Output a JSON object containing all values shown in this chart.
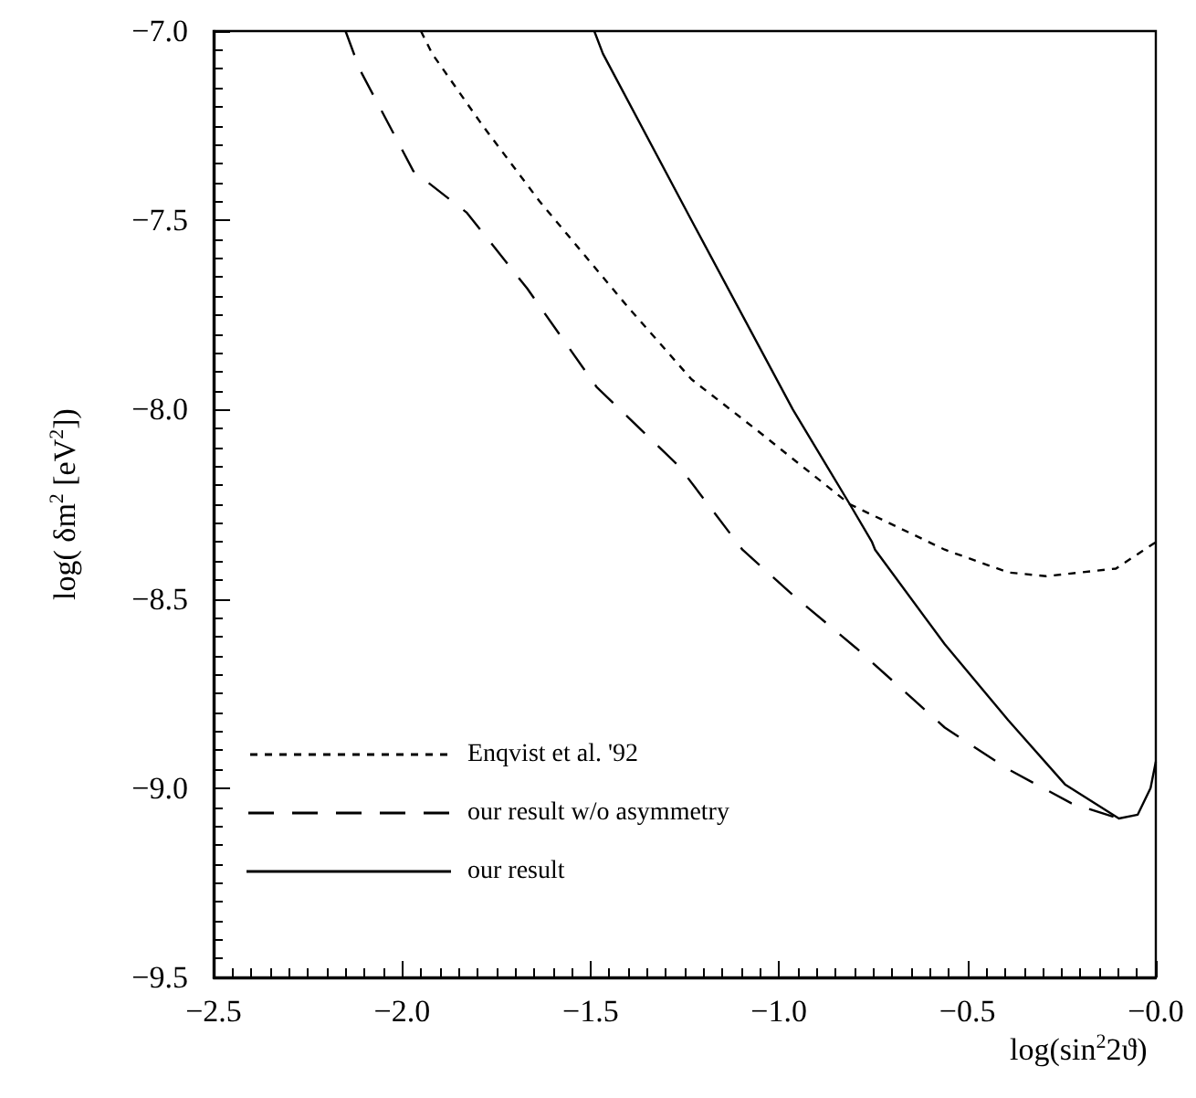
{
  "chart_data": {
    "type": "line",
    "xlabel": "log(sin$^{2}$2ϑ)",
    "ylabel": "log( δm$^{2}$ [eV$^{2}$])",
    "xlim": [
      -2.5,
      0.0
    ],
    "ylim": [
      -9.5,
      -7.0
    ],
    "xticks": [
      {
        "value": -2.5,
        "label": "−2.5"
      },
      {
        "value": -2.0,
        "label": "−2.0"
      },
      {
        "value": -1.5,
        "label": "−1.5"
      },
      {
        "value": -1.0,
        "label": "−1.0"
      },
      {
        "value": -0.5,
        "label": "−0.5"
      },
      {
        "value": 0.0,
        "label": "−0.0"
      }
    ],
    "yticks": [
      {
        "value": -9.5,
        "label": "−9.5"
      },
      {
        "value": -9.0,
        "label": "−9.0"
      },
      {
        "value": -8.5,
        "label": "−8.5"
      },
      {
        "value": -8.0,
        "label": "−8.0"
      },
      {
        "value": -7.5,
        "label": "−7.5"
      },
      {
        "value": -7.0,
        "label": "−7.0"
      }
    ],
    "grid": false,
    "legend": "bottom left",
    "marker": "none",
    "series": [
      {
        "name": "Enqvist et al. '92",
        "color": "#000000",
        "line_style": "dotted",
        "x": [
          -1.95,
          -1.92,
          -1.786,
          -1.635,
          -1.4,
          -1.232,
          -1.064,
          -0.812,
          -0.56,
          -0.392,
          -0.291,
          -0.106,
          0.0
        ],
        "values": [
          -7.0,
          -7.06,
          -7.25,
          -7.45,
          -7.73,
          -7.92,
          -8.05,
          -8.25,
          -8.37,
          -8.43,
          -8.44,
          -8.42,
          -8.35
        ]
      },
      {
        "name": "our result w/o asymmetry",
        "color": "#000000",
        "line_style": "dashed",
        "x": [
          -2.15,
          -2.113,
          -1.97,
          -1.828,
          -1.668,
          -1.484,
          -1.265,
          -1.097,
          -0.963,
          -0.795,
          -0.56,
          -0.392,
          -0.224,
          -0.098
        ],
        "values": [
          -7.0,
          -7.1,
          -7.37,
          -7.48,
          -7.68,
          -7.94,
          -8.15,
          -8.37,
          -8.49,
          -8.63,
          -8.84,
          -8.95,
          -9.04,
          -9.08
        ]
      },
      {
        "name": "our result",
        "color": "#000000",
        "line_style": "solid",
        "x": [
          -1.49,
          -1.467,
          -1.232,
          -0.963,
          -0.812,
          -0.753,
          -0.745,
          -0.56,
          -0.392,
          -0.241,
          -0.098,
          -0.048,
          -0.014,
          0.0
        ],
        "values": [
          -7.0,
          -7.06,
          -7.5,
          -8.0,
          -8.25,
          -8.35,
          -8.37,
          -8.62,
          -8.82,
          -8.99,
          -9.08,
          -9.07,
          -9.0,
          -8.93
        ]
      }
    ]
  }
}
